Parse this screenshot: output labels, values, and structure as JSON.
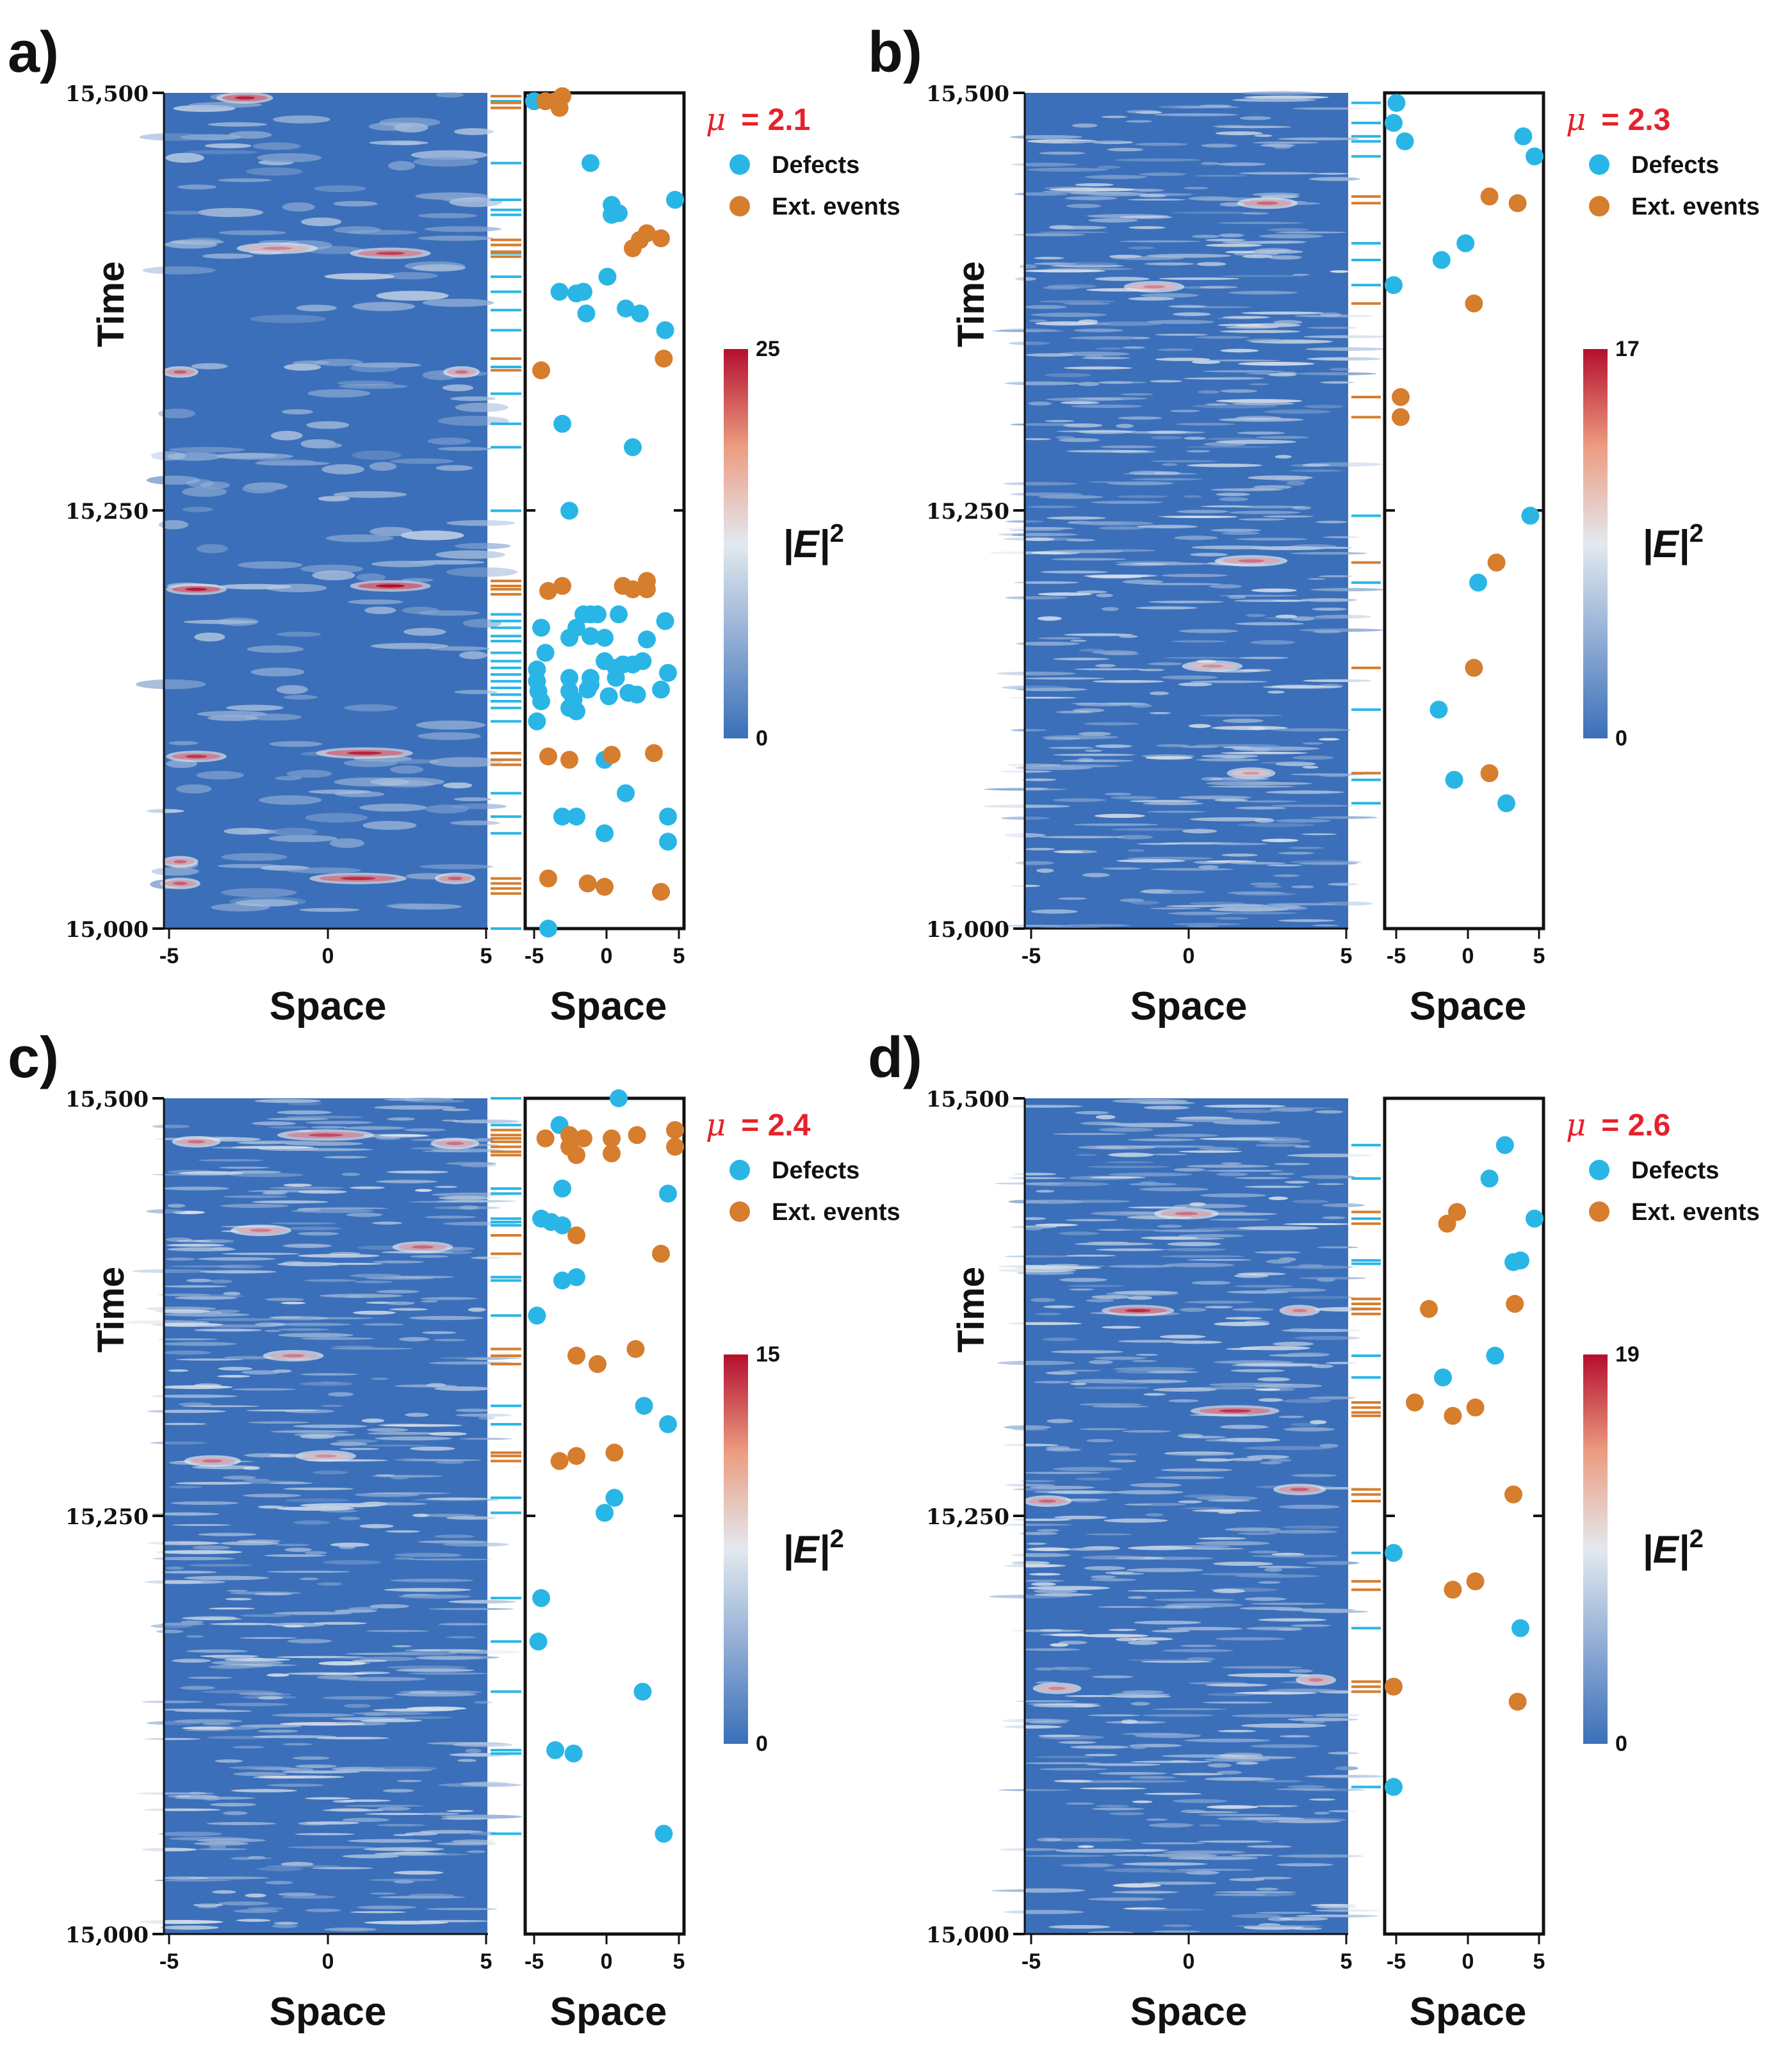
{
  "figure": {
    "colors": {
      "defect": "#29b6e6",
      "extreme": "#d67d2e",
      "mu_text": "#e6212a",
      "heat_low": "#3b6fb9",
      "heat_mid": "#e3e9ef",
      "heat_high": "#b40f2e",
      "axis": "#111111"
    },
    "strings": {
      "time_label": "Time",
      "space_label": "Space",
      "colorbar_label": "|E|2",
      "legend_defects": "Defects",
      "legend_extreme": "Ext. events",
      "mu_symbol": "μ"
    }
  },
  "chart_data": [
    {
      "type": "heatmap",
      "panel": "a)",
      "mu_label": "= 2.1",
      "xlabel": "Space",
      "ylabel": "Time",
      "xlim": [
        -5,
        5
      ],
      "ylim": [
        15000,
        15500
      ],
      "x_ticks": [
        "-5",
        "0",
        "5"
      ],
      "scatter_x_ticks": [
        "-5",
        "0",
        "5"
      ],
      "y_ticks": [
        "15,000",
        "15,250",
        "15,500"
      ],
      "colorbar": {
        "min": "0",
        "max": "25",
        "label": "|E|2"
      },
      "legend": [
        "Defects",
        "Ext. events"
      ],
      "background_mode": "blobs",
      "intensity_events": [
        {
          "t": 15497,
          "x": -2.5,
          "w": 1.4,
          "a": 0.9
        },
        {
          "t": 15404,
          "x": 2.0,
          "w": 2.0,
          "a": 0.75
        },
        {
          "t": 15407,
          "x": -1.5,
          "w": 2.0,
          "a": 0.4
        },
        {
          "t": 15333,
          "x": -4.5,
          "w": 0.9,
          "a": 0.6
        },
        {
          "t": 15333,
          "x": 4.2,
          "w": 0.9,
          "a": 0.5
        },
        {
          "t": 15205,
          "x": 2.0,
          "w": 2.0,
          "a": 1.0
        },
        {
          "t": 15203,
          "x": -4.0,
          "w": 1.5,
          "a": 0.95
        },
        {
          "t": 15105,
          "x": 1.2,
          "w": 2.4,
          "a": 0.9
        },
        {
          "t": 15103,
          "x": -4.0,
          "w": 1.5,
          "a": 0.8
        },
        {
          "t": 15030,
          "x": 1.0,
          "w": 2.4,
          "a": 0.85
        },
        {
          "t": 15027,
          "x": -4.5,
          "w": 1.0,
          "a": 0.6
        },
        {
          "t": 15040,
          "x": -4.5,
          "w": 0.9,
          "a": 0.55
        },
        {
          "t": 15030,
          "x": 4.0,
          "w": 1.0,
          "a": 0.6
        }
      ],
      "defects": [
        [
          -5.0,
          15495
        ],
        [
          -1.0,
          15458
        ],
        [
          5.0,
          15436
        ],
        [
          0.5,
          15433
        ],
        [
          0.5,
          15427
        ],
        [
          1.0,
          15428
        ],
        [
          0.2,
          15390
        ],
        [
          -1.5,
          15381
        ],
        [
          -3.2,
          15381
        ],
        [
          -2.0,
          15380
        ],
        [
          -1.3,
          15368
        ],
        [
          1.5,
          15371
        ],
        [
          2.5,
          15368
        ],
        [
          4.3,
          15358
        ],
        [
          -3.0,
          15302
        ],
        [
          2.0,
          15288
        ],
        [
          -2.5,
          15250
        ],
        [
          -2.0,
          15180
        ],
        [
          -1.5,
          15188
        ],
        [
          -1.0,
          15188
        ],
        [
          -0.5,
          15188
        ],
        [
          1.0,
          15188
        ],
        [
          4.3,
          15184
        ],
        [
          -4.5,
          15180
        ],
        [
          -2.5,
          15174
        ],
        [
          -1.0,
          15175
        ],
        [
          0.0,
          15174
        ],
        [
          3.0,
          15173
        ],
        [
          -4.2,
          15165
        ],
        [
          0.0,
          15160
        ],
        [
          0.8,
          15156
        ],
        [
          1.3,
          15158
        ],
        [
          2.0,
          15158
        ],
        [
          2.7,
          15160
        ],
        [
          -4.8,
          15155
        ],
        [
          -1.0,
          15150
        ],
        [
          0.8,
          15150
        ],
        [
          4.5,
          15153
        ],
        [
          -4.8,
          15148
        ],
        [
          -2.5,
          15150
        ],
        [
          -1.0,
          15146
        ],
        [
          -4.7,
          15142
        ],
        [
          -2.5,
          15142
        ],
        [
          -1.2,
          15143
        ],
        [
          1.7,
          15141
        ],
        [
          2.3,
          15140
        ],
        [
          4.0,
          15143
        ],
        [
          -4.5,
          15136
        ],
        [
          -2.2,
          15137
        ],
        [
          0.3,
          15139
        ],
        [
          -2.5,
          15132
        ],
        [
          -2.0,
          15130
        ],
        [
          -4.8,
          15124
        ],
        [
          0.0,
          15101
        ],
        [
          1.5,
          15081
        ],
        [
          -3.0,
          15067
        ],
        [
          -2.0,
          15067
        ],
        [
          0.0,
          15057
        ],
        [
          4.5,
          15067
        ],
        [
          4.5,
          15052
        ],
        [
          -4.0,
          15000
        ]
      ],
      "extremes": [
        [
          -4.2,
          15495
        ],
        [
          -3.5,
          15495
        ],
        [
          -3.0,
          15498
        ],
        [
          -3.2,
          15491
        ],
        [
          2.0,
          15407
        ],
        [
          2.5,
          15412
        ],
        [
          3.0,
          15416
        ],
        [
          4.0,
          15413
        ],
        [
          -4.5,
          15334
        ],
        [
          4.2,
          15341
        ],
        [
          -4.0,
          15202
        ],
        [
          -3.0,
          15205
        ],
        [
          1.3,
          15205
        ],
        [
          2.0,
          15203
        ],
        [
          3.0,
          15208
        ],
        [
          3.0,
          15203
        ],
        [
          -4.0,
          15103
        ],
        [
          -2.5,
          15101
        ],
        [
          0.5,
          15104
        ],
        [
          3.5,
          15105
        ],
        [
          -4.0,
          15030
        ],
        [
          -1.2,
          15027
        ],
        [
          0.0,
          15025
        ],
        [
          4.0,
          15022
        ]
      ],
      "scatter_defect_lines": [
        15495,
        15458,
        15436,
        15430,
        15427,
        15404,
        15390,
        15381,
        15370,
        15358,
        15336,
        15320,
        15302,
        15288,
        15250,
        15188,
        15184,
        15180,
        15175,
        15172,
        15165,
        15160,
        15156,
        15152,
        15148,
        15144,
        15140,
        15136,
        15132,
        15124,
        15101,
        15081,
        15067,
        15057,
        15000
      ],
      "scatter_extreme_lines": [
        15498,
        15494,
        15491,
        15412,
        15409,
        15405,
        15402,
        15341,
        15334,
        15208,
        15205,
        15203,
        15200,
        15105,
        15101,
        15098,
        15030,
        15027,
        15024,
        15021
      ]
    },
    {
      "type": "heatmap",
      "panel": "b)",
      "mu_label": "= 2.3",
      "xlabel": "Space",
      "ylabel": "Time",
      "xlim": [
        -5,
        5
      ],
      "ylim": [
        15000,
        15500
      ],
      "x_ticks": [
        "-5",
        "0",
        "5"
      ],
      "scatter_x_ticks": [
        "-5",
        "0",
        "5"
      ],
      "y_ticks": [
        "15,000",
        "15,250",
        "15,500"
      ],
      "colorbar": {
        "min": "0",
        "max": "17",
        "label": "|E|2"
      },
      "legend": [
        "Defects",
        "Ext. events"
      ],
      "background_mode": "streaks",
      "intensity_events": [
        {
          "t": 15434,
          "x": 2.5,
          "w": 1.5,
          "a": 0.55
        },
        {
          "t": 15384,
          "x": -1.0,
          "w": 1.5,
          "a": 0.4
        },
        {
          "t": 15220,
          "x": 2.0,
          "w": 1.8,
          "a": 0.5
        },
        {
          "t": 15157,
          "x": 0.8,
          "w": 1.5,
          "a": 0.35
        },
        {
          "t": 15093,
          "x": 2.0,
          "w": 1.2,
          "a": 0.3
        }
      ],
      "defects": [
        [
          -4.8,
          15494
        ],
        [
          -5.0,
          15482
        ],
        [
          -4.2,
          15471
        ],
        [
          4.2,
          15474
        ],
        [
          5.0,
          15462
        ],
        [
          0.1,
          15410
        ],
        [
          -1.6,
          15400
        ],
        [
          -5.0,
          15385
        ],
        [
          4.7,
          15247
        ],
        [
          1.0,
          15207
        ],
        [
          -1.8,
          15131
        ],
        [
          -0.7,
          15089
        ],
        [
          3.0,
          15075
        ]
      ],
      "extremes": [
        [
          1.8,
          15438
        ],
        [
          3.8,
          15434
        ],
        [
          0.7,
          15374
        ],
        [
          -4.5,
          15318
        ],
        [
          -4.5,
          15306
        ],
        [
          2.3,
          15219
        ],
        [
          0.7,
          15156
        ],
        [
          1.8,
          15093
        ]
      ],
      "scatter_defect_lines": [
        15494,
        15482,
        15474,
        15471,
        15462,
        15410,
        15400,
        15385,
        15247,
        15207,
        15131,
        15089,
        15075
      ],
      "scatter_extreme_lines": [
        15438,
        15434,
        15374,
        15318,
        15306,
        15219,
        15156,
        15093
      ]
    },
    {
      "type": "heatmap",
      "panel": "c)",
      "mu_label": "= 2.4",
      "xlabel": "Space",
      "ylabel": "Time",
      "xlim": [
        -5,
        5
      ],
      "ylim": [
        15000,
        15500
      ],
      "x_ticks": [
        "-5",
        "0",
        "5"
      ],
      "scatter_x_ticks": [
        "-5",
        "0",
        "5"
      ],
      "y_ticks": [
        "15,000",
        "15,250",
        "15,500"
      ],
      "colorbar": {
        "min": "0",
        "max": "15",
        "label": "|E|2"
      },
      "legend": [
        "Defects",
        "Ext. events"
      ],
      "background_mode": "streaks",
      "intensity_events": [
        {
          "t": 15478,
          "x": 0.0,
          "w": 2.4,
          "a": 0.7
        },
        {
          "t": 15474,
          "x": -4.0,
          "w": 1.2,
          "a": 0.5
        },
        {
          "t": 15473,
          "x": 4.0,
          "w": 1.2,
          "a": 0.5
        },
        {
          "t": 15421,
          "x": -2.0,
          "w": 1.5,
          "a": 0.45
        },
        {
          "t": 15411,
          "x": 3.0,
          "w": 1.5,
          "a": 0.55
        },
        {
          "t": 15346,
          "x": -1.0,
          "w": 1.5,
          "a": 0.45
        },
        {
          "t": 15283,
          "x": -3.5,
          "w": 1.4,
          "a": 0.5
        },
        {
          "t": 15286,
          "x": 0.0,
          "w": 1.5,
          "a": 0.35
        }
      ],
      "defects": [
        [
          1.0,
          15500
        ],
        [
          -3.2,
          15484
        ],
        [
          -3.0,
          15446
        ],
        [
          4.5,
          15443
        ],
        [
          -4.5,
          15428
        ],
        [
          -3.8,
          15426
        ],
        [
          -3.0,
          15424
        ],
        [
          -3.0,
          15391
        ],
        [
          -2.0,
          15393
        ],
        [
          -4.8,
          15370
        ],
        [
          2.8,
          15316
        ],
        [
          4.5,
          15305
        ],
        [
          0.7,
          15261
        ],
        [
          0.0,
          15252
        ],
        [
          -4.5,
          15201
        ],
        [
          -4.7,
          15175
        ],
        [
          2.7,
          15145
        ],
        [
          -3.5,
          15110
        ],
        [
          -2.2,
          15108
        ],
        [
          4.2,
          15060
        ]
      ],
      "extremes": [
        [
          -4.2,
          15476
        ],
        [
          -2.5,
          15478
        ],
        [
          -1.5,
          15476
        ],
        [
          -2.5,
          15471
        ],
        [
          -2.0,
          15466
        ],
        [
          0.5,
          15476
        ],
        [
          0.5,
          15467
        ],
        [
          2.3,
          15478
        ],
        [
          5.0,
          15481
        ],
        [
          5.0,
          15471
        ],
        [
          -2.0,
          15418
        ],
        [
          4.0,
          15407
        ],
        [
          2.2,
          15350
        ],
        [
          -2.0,
          15346
        ],
        [
          -0.5,
          15341
        ],
        [
          -3.2,
          15283
        ],
        [
          -2.0,
          15286
        ],
        [
          0.7,
          15288
        ]
      ],
      "scatter_defect_lines": [
        15500,
        15484,
        15446,
        15443,
        15428,
        15426,
        15424,
        15393,
        15391,
        15370,
        15316,
        15305,
        15261,
        15252,
        15201,
        15175,
        15145,
        15110,
        15108,
        15060
      ],
      "scatter_extreme_lines": [
        15481,
        15478,
        15476,
        15474,
        15471,
        15468,
        15466,
        15418,
        15407,
        15350,
        15346,
        15341,
        15288,
        15286,
        15283
      ]
    },
    {
      "type": "heatmap",
      "panel": "d)",
      "mu_label": "= 2.6",
      "xlabel": "Space",
      "ylabel": "Time",
      "xlim": [
        -5,
        5
      ],
      "ylim": [
        15000,
        15500
      ],
      "x_ticks": [
        "-5",
        "0",
        "5"
      ],
      "scatter_x_ticks": [
        "-5",
        "0",
        "5"
      ],
      "y_ticks": [
        "15,000",
        "15,250",
        "15,500"
      ],
      "colorbar": {
        "min": "0",
        "max": "19",
        "label": "|E|2"
      },
      "legend": [
        "Defects",
        "Ext. events"
      ],
      "background_mode": "streaks",
      "intensity_events": [
        {
          "t": 15431,
          "x": 0.0,
          "w": 1.6,
          "a": 0.5
        },
        {
          "t": 15373,
          "x": -1.5,
          "w": 1.8,
          "a": 0.85
        },
        {
          "t": 15373,
          "x": 3.5,
          "w": 1.0,
          "a": 0.45
        },
        {
          "t": 15313,
          "x": 1.5,
          "w": 2.2,
          "a": 0.8
        },
        {
          "t": 15266,
          "x": 3.5,
          "w": 1.3,
          "a": 0.6
        },
        {
          "t": 15259,
          "x": -4.3,
          "w": 1.2,
          "a": 0.55
        },
        {
          "t": 15152,
          "x": 4.0,
          "w": 1.0,
          "a": 0.45
        },
        {
          "t": 15147,
          "x": -4.0,
          "w": 1.2,
          "a": 0.4
        }
      ],
      "defects": [
        [
          2.9,
          15472
        ],
        [
          1.8,
          15452
        ],
        [
          5.0,
          15428
        ],
        [
          3.5,
          15402
        ],
        [
          4.0,
          15403
        ],
        [
          2.2,
          15346
        ],
        [
          -1.5,
          15333
        ],
        [
          -5.0,
          15228
        ],
        [
          4.0,
          15183
        ],
        [
          -5.0,
          15088
        ]
      ],
      "extremes": [
        [
          -0.5,
          15432
        ],
        [
          -1.2,
          15425
        ],
        [
          3.6,
          15377
        ],
        [
          -2.5,
          15374
        ],
        [
          -3.5,
          15318
        ],
        [
          -0.8,
          15310
        ],
        [
          0.8,
          15315
        ],
        [
          3.5,
          15263
        ],
        [
          -0.8,
          15206
        ],
        [
          0.8,
          15211
        ],
        [
          -5.0,
          15148
        ],
        [
          3.8,
          15139
        ]
      ],
      "scatter_defect_lines": [
        15472,
        15452,
        15428,
        15403,
        15401,
        15346,
        15333,
        15228,
        15183,
        15088
      ],
      "scatter_extreme_lines": [
        15432,
        15425,
        15380,
        15377,
        15374,
        15371,
        15318,
        15315,
        15312,
        15310,
        15266,
        15263,
        15259,
        15211,
        15206,
        15151,
        15148,
        15145
      ]
    }
  ]
}
